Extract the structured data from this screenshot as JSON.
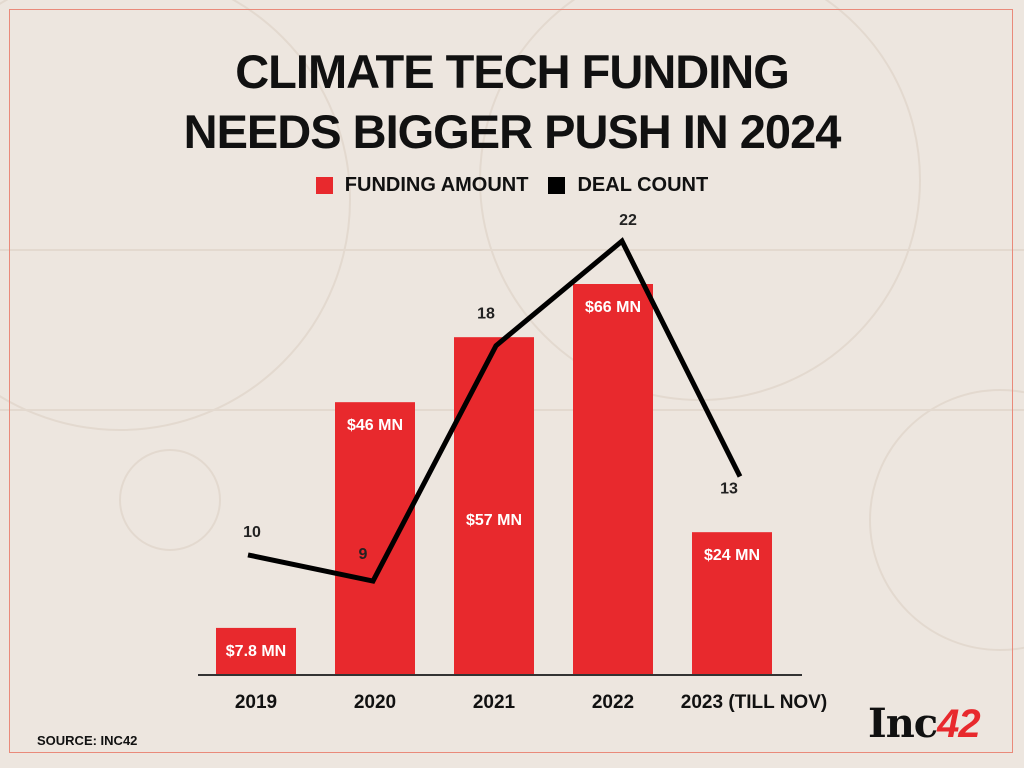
{
  "title_lines": [
    "CLIMATE TECH FUNDING",
    "NEEDS BIGGER PUSH IN 2024"
  ],
  "source": "SOURCE: INC42",
  "logo": {
    "text": "Inc",
    "accent": "42"
  },
  "colors": {
    "background": "#ede6df",
    "bar": "#e8292d",
    "line": "#000000",
    "frame": "#e98a7a"
  },
  "chart_data": {
    "type": "bar+line",
    "title": "CLIMATE TECH FUNDING NEEDS BIGGER PUSH IN 2024",
    "categories": [
      "2019",
      "2020",
      "2021",
      "2022",
      "2023 (TILL NOV)"
    ],
    "series": [
      {
        "name": "FUNDING AMOUNT",
        "type": "bar",
        "unit": "$ MN",
        "values": [
          7.8,
          46,
          57,
          66,
          24
        ],
        "labels": [
          "$7.8 MN",
          "$46 MN",
          "$57 MN",
          "$66 MN",
          "$24 MN"
        ]
      },
      {
        "name": "DEAL COUNT",
        "type": "line",
        "values": [
          10,
          9,
          18,
          22,
          13
        ],
        "labels": [
          "10",
          "9",
          "18",
          "22",
          "13"
        ]
      }
    ],
    "legend": "top-center",
    "grid": false,
    "xlabel": "",
    "ylabel": ""
  }
}
